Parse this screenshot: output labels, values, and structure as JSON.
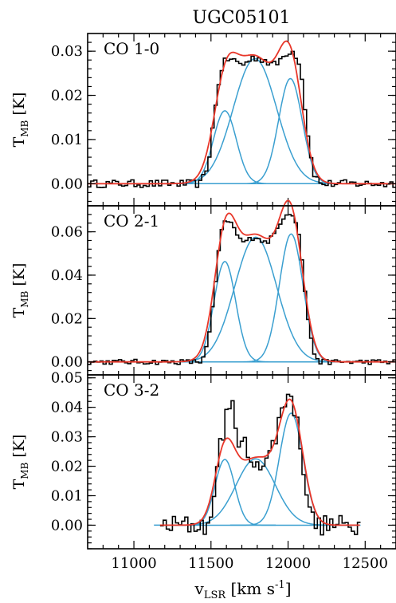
{
  "figure": {
    "title": "UGC05101",
    "xlabel_main": "v",
    "xlabel_sub": "LSR",
    "xlabel_unit": "[km s",
    "xlabel_sup": "-1",
    "xlabel_close": "]"
  },
  "colors": {
    "observed": "#000000",
    "components": "#3a9fd0",
    "total_fit": "#e8372a"
  },
  "chart_data": [
    {
      "type": "line",
      "label": "CO 1-0",
      "ylabel_main": "T",
      "ylabel_sub": "MB",
      "ylabel_unit": "[K]",
      "xlim": [
        10700,
        12700
      ],
      "ylim": [
        -0.005,
        0.034
      ],
      "yticks": [
        0.0,
        0.01,
        0.02,
        0.03
      ],
      "ytick_labels": [
        "0.00",
        "0.01",
        "0.02",
        "0.03"
      ],
      "xticks": [
        11000,
        11500,
        12000,
        12500
      ],
      "xtick_labels": [],
      "x_range": [
        10700,
        12700
      ],
      "noise": 0.0009,
      "components": [
        {
          "center": 11590,
          "fwhm": 175,
          "amplitude": 0.0165
        },
        {
          "center": 11785,
          "fwhm": 330,
          "amplitude": 0.0283
        },
        {
          "center": 12015,
          "fwhm": 180,
          "amplitude": 0.0238
        }
      ],
      "observed": [
        {
          "x": 11440,
          "y": 0.0005
        },
        {
          "x": 11480,
          "y": 0.004
        },
        {
          "x": 11520,
          "y": 0.015
        },
        {
          "x": 11560,
          "y": 0.0255
        },
        {
          "x": 11600,
          "y": 0.0282
        },
        {
          "x": 11640,
          "y": 0.0281
        },
        {
          "x": 11680,
          "y": 0.0273
        },
        {
          "x": 11720,
          "y": 0.027
        },
        {
          "x": 11760,
          "y": 0.0284
        },
        {
          "x": 11800,
          "y": 0.0285
        },
        {
          "x": 11840,
          "y": 0.0282
        },
        {
          "x": 11880,
          "y": 0.0272
        },
        {
          "x": 11920,
          "y": 0.0268
        },
        {
          "x": 11960,
          "y": 0.0285
        },
        {
          "x": 12000,
          "y": 0.03
        },
        {
          "x": 12040,
          "y": 0.0298
        },
        {
          "x": 12080,
          "y": 0.027
        },
        {
          "x": 12120,
          "y": 0.014
        },
        {
          "x": 12160,
          "y": 0.003
        },
        {
          "x": 12200,
          "y": 0.0005
        }
      ]
    },
    {
      "type": "line",
      "label": "CO 2-1",
      "ylabel_main": "T",
      "ylabel_sub": "MB",
      "ylabel_unit": "[K]",
      "xlim": [
        10700,
        12700
      ],
      "ylim": [
        -0.006,
        0.072
      ],
      "yticks": [
        0.0,
        0.02,
        0.04,
        0.06
      ],
      "ytick_labels": [
        "0.00",
        "0.02",
        "0.04",
        "0.06"
      ],
      "xticks": [
        11000,
        11500,
        12000,
        12500
      ],
      "xtick_labels": [],
      "x_range": [
        10700,
        12700
      ],
      "noise": 0.0012,
      "components": [
        {
          "center": 11590,
          "fwhm": 165,
          "amplitude": 0.0463
        },
        {
          "center": 11790,
          "fwhm": 320,
          "amplitude": 0.0575
        },
        {
          "center": 12020,
          "fwhm": 180,
          "amplitude": 0.059
        }
      ],
      "observed": [
        {
          "x": 11440,
          "y": 0.001
        },
        {
          "x": 11480,
          "y": 0.008
        },
        {
          "x": 11520,
          "y": 0.03
        },
        {
          "x": 11560,
          "y": 0.058
        },
        {
          "x": 11600,
          "y": 0.066
        },
        {
          "x": 11640,
          "y": 0.063
        },
        {
          "x": 11680,
          "y": 0.057
        },
        {
          "x": 11720,
          "y": 0.055
        },
        {
          "x": 11760,
          "y": 0.057
        },
        {
          "x": 11800,
          "y": 0.058
        },
        {
          "x": 11840,
          "y": 0.055
        },
        {
          "x": 11880,
          "y": 0.056
        },
        {
          "x": 11920,
          "y": 0.06
        },
        {
          "x": 11960,
          "y": 0.066
        },
        {
          "x": 12000,
          "y": 0.069
        },
        {
          "x": 12040,
          "y": 0.068
        },
        {
          "x": 12080,
          "y": 0.055
        },
        {
          "x": 12120,
          "y": 0.025
        },
        {
          "x": 12160,
          "y": 0.005
        },
        {
          "x": 12200,
          "y": 0.001
        }
      ]
    },
    {
      "type": "line",
      "label": "CO 3-2",
      "ylabel_main": "T",
      "ylabel_sub": "MB",
      "ylabel_unit": "[K]",
      "xlim": [
        10700,
        12700
      ],
      "ylim": [
        -0.008,
        0.051
      ],
      "yticks": [
        0.0,
        0.01,
        0.02,
        0.03,
        0.04,
        0.05
      ],
      "ytick_labels": [
        "0.00",
        "0.01",
        "0.02",
        "0.03",
        "0.04",
        "0.05"
      ],
      "xticks": [
        11000,
        11500,
        12000,
        12500
      ],
      "xtick_labels": [
        "11000",
        "11500",
        "12000",
        "12500"
      ],
      "x_range": [
        11170,
        12470
      ],
      "noise": 0.0035,
      "components": [
        {
          "center": 11590,
          "fwhm": 150,
          "amplitude": 0.0223
        },
        {
          "center": 11790,
          "fwhm": 300,
          "amplitude": 0.0225
        },
        {
          "center": 12020,
          "fwhm": 180,
          "amplitude": 0.038
        }
      ],
      "observed": [
        {
          "x": 11520,
          "y": 0.012
        },
        {
          "x": 11560,
          "y": 0.028
        },
        {
          "x": 11600,
          "y": 0.036
        },
        {
          "x": 11640,
          "y": 0.04
        },
        {
          "x": 11680,
          "y": 0.03
        },
        {
          "x": 11720,
          "y": 0.027
        },
        {
          "x": 11760,
          "y": 0.019
        },
        {
          "x": 11800,
          "y": 0.023
        },
        {
          "x": 11840,
          "y": 0.021
        },
        {
          "x": 11880,
          "y": 0.024
        },
        {
          "x": 11920,
          "y": 0.03
        },
        {
          "x": 11960,
          "y": 0.04
        },
        {
          "x": 12000,
          "y": 0.045
        },
        {
          "x": 12040,
          "y": 0.04
        },
        {
          "x": 12080,
          "y": 0.028
        },
        {
          "x": 12120,
          "y": 0.012
        },
        {
          "x": 12160,
          "y": 0.002
        }
      ]
    }
  ]
}
